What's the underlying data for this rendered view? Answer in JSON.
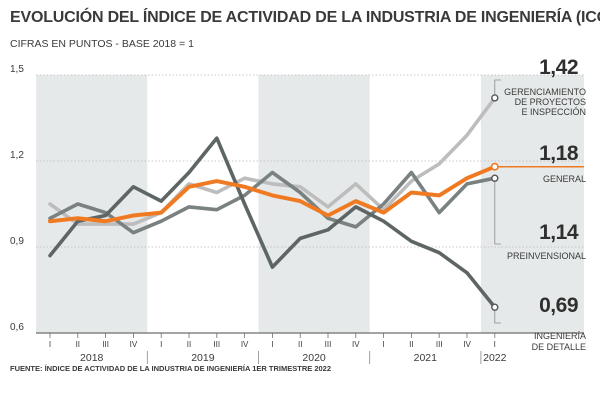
{
  "title": "EVOLUCIÓN DEL ÍNDICE DE ACTIVIDAD DE LA INDUSTRIA DE INGENIERÍA (ICON)",
  "subtitle": "CIFRAS EN PUNTOS - BASE 2018 = 1",
  "source": "FUENTE: ÍNDICE DE ACTIVIDAD DE LA INDUSTRIA DE INGENIERÍA 1ER TRIMESTRE 2022",
  "chart_data": {
    "type": "line",
    "categories": [
      "I",
      "II",
      "III",
      "IV",
      "I",
      "II",
      "III",
      "IV",
      "I",
      "II",
      "III",
      "IV",
      "I",
      "II",
      "III",
      "IV",
      "I"
    ],
    "years": [
      {
        "label": "2018",
        "start": 0,
        "end": 3
      },
      {
        "label": "2019",
        "start": 4,
        "end": 7
      },
      {
        "label": "2020",
        "start": 8,
        "end": 11
      },
      {
        "label": "2021",
        "start": 12,
        "end": 15
      },
      {
        "label": "2022",
        "start": 16,
        "end": 16
      }
    ],
    "y_ticks": [
      0.6,
      0.9,
      1.2,
      1.5
    ],
    "y_tick_labels": [
      "0,6",
      "0,9",
      "1,2",
      "1,5"
    ],
    "ylim": [
      0.6,
      1.5
    ],
    "shaded_years": [
      "2018",
      "2020",
      "2022"
    ],
    "series": [
      {
        "name": "GERENCIAMIENTO DE PROYECTOS E INSPECCIÓN",
        "name_lines": [
          "GERENCIAMIENTO",
          "DE PROYECTOS",
          "E INSPECCIÓN"
        ],
        "value_label": "1,42",
        "color": "#bdbdbd",
        "values": [
          1.05,
          0.98,
          0.98,
          0.98,
          1.02,
          1.12,
          1.09,
          1.14,
          1.12,
          1.11,
          1.04,
          1.12,
          1.03,
          1.13,
          1.19,
          1.29,
          1.42
        ]
      },
      {
        "name": "PREINVENSIONAL",
        "name_lines": [
          "PREINVENSIONAL"
        ],
        "value_label": "1,14",
        "color": "#7a8181",
        "values": [
          1.0,
          1.05,
          1.02,
          0.95,
          0.99,
          1.04,
          1.03,
          1.08,
          1.16,
          1.09,
          1.0,
          0.97,
          1.05,
          1.16,
          1.02,
          1.12,
          1.14
        ]
      },
      {
        "name": "INGENIERÍA DE DETALLE",
        "name_lines": [
          "INGENIERÍA",
          "DE DETALLE"
        ],
        "value_label": "0,69",
        "color": "#5e6565",
        "values": [
          0.87,
          0.99,
          1.01,
          1.11,
          1.06,
          1.16,
          1.28,
          1.05,
          0.83,
          0.93,
          0.96,
          1.04,
          0.99,
          0.92,
          0.88,
          0.81,
          0.69
        ]
      },
      {
        "name": "GENERAL",
        "name_lines": [
          "GENERAL"
        ],
        "value_label": "1,18",
        "color": "#f07a22",
        "values": [
          0.99,
          1.0,
          0.99,
          1.01,
          1.02,
          1.11,
          1.13,
          1.11,
          1.08,
          1.06,
          1.01,
          1.06,
          1.02,
          1.09,
          1.08,
          1.14,
          1.18
        ]
      }
    ]
  }
}
